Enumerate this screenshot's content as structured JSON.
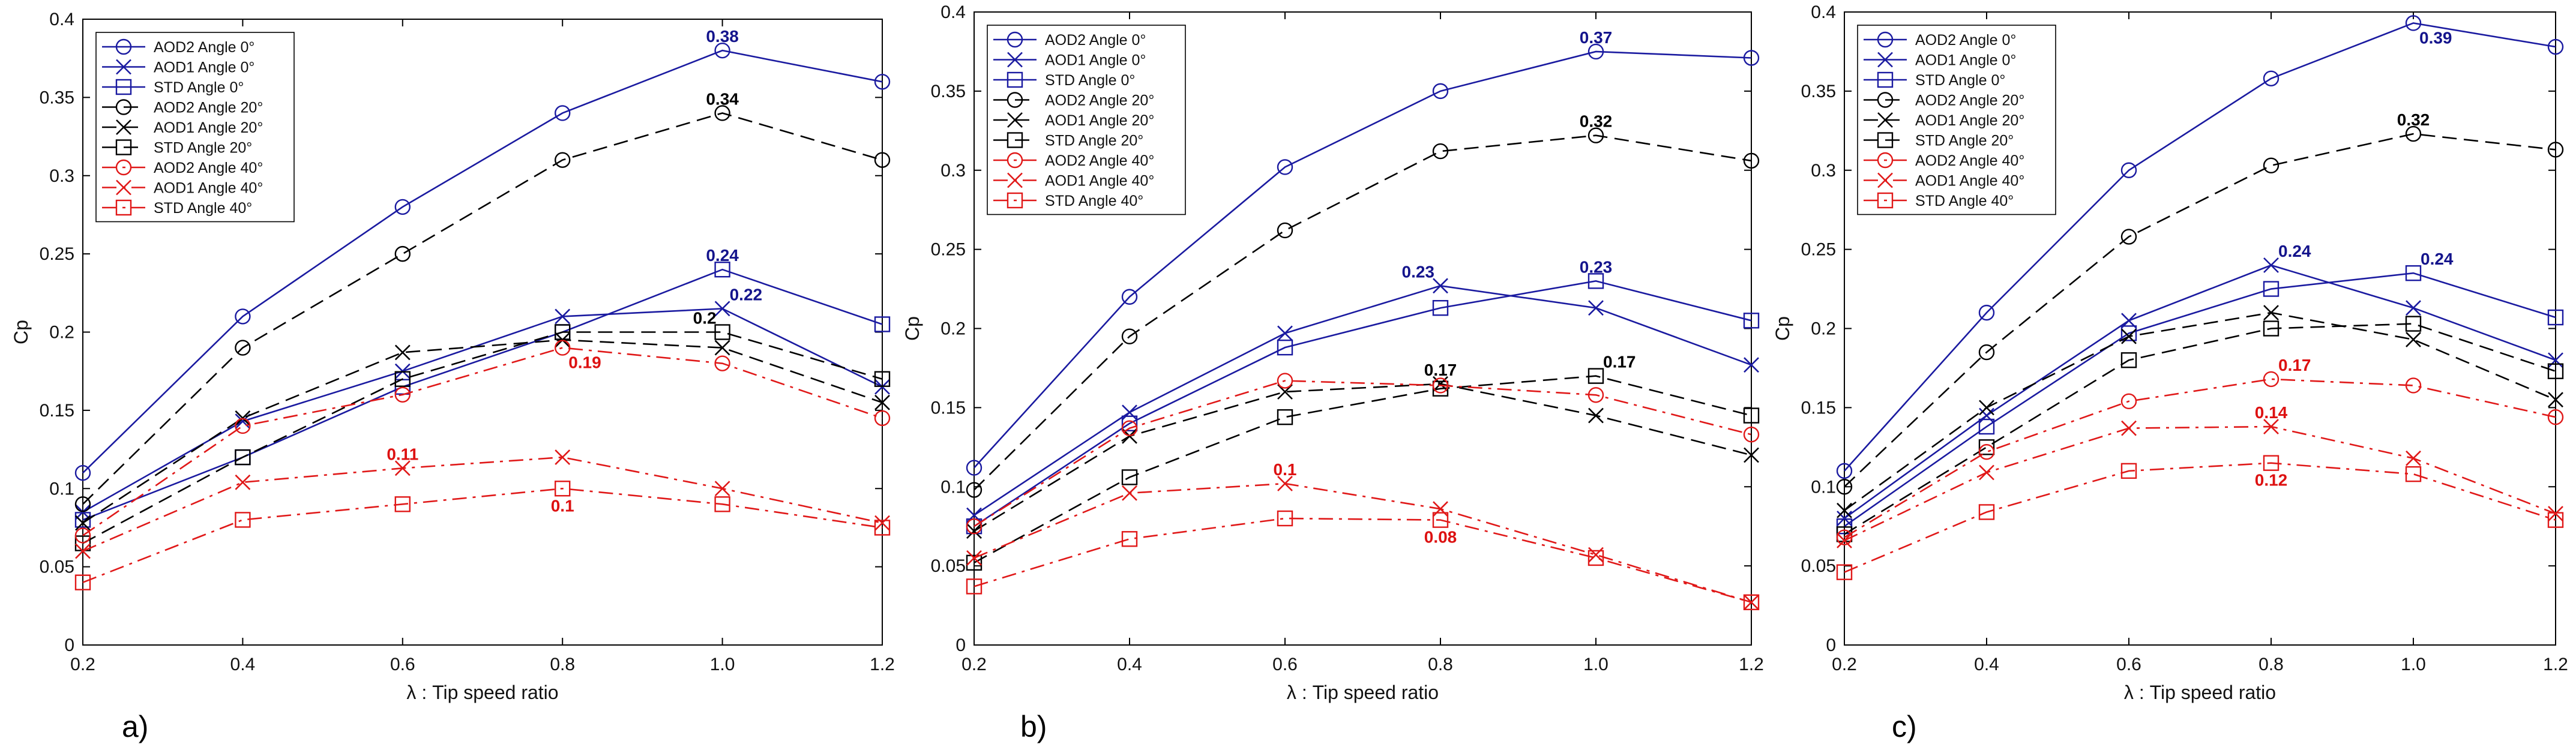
{
  "colors": {
    "blue": "#1a1aa0",
    "black": "#000000",
    "red": "#e01818",
    "label_blue": "#14148c",
    "label_red": "#dd1111"
  },
  "chart_data": [
    {
      "type": "line",
      "panel_label": "a)",
      "title": "",
      "xlabel": "λ : Tip speed ratio",
      "ylabel": "Cp",
      "xlim": [
        0.2,
        1.2
      ],
      "ylim": [
        0,
        0.4
      ],
      "grid": false,
      "legend_position": "top-left",
      "x_tick_labels": [
        "0.2",
        "0.4",
        "0.6",
        "0.8",
        "1.0",
        "1.2"
      ],
      "y_tick_labels": [
        "0",
        "0.05",
        "0.1",
        "0.15",
        "0.2",
        "0.25",
        "0.3",
        "0.35",
        "0.4"
      ],
      "x": [
        0.2,
        0.4,
        0.6,
        0.8,
        1.0,
        1.2
      ],
      "series": [
        {
          "name": "AOD2 Angle 0°",
          "color": "blue",
          "dash": "solid",
          "marker": "circle",
          "values": [
            0.11,
            0.21,
            0.28,
            0.34,
            0.38,
            0.36
          ]
        },
        {
          "name": "AOD1 Angle 0°",
          "color": "blue",
          "dash": "solid",
          "marker": "x",
          "values": [
            0.085,
            0.143,
            0.175,
            0.21,
            0.215,
            0.165
          ]
        },
        {
          "name": "STD Angle 0°",
          "color": "blue",
          "dash": "solid",
          "marker": "square",
          "values": [
            0.08,
            0.12,
            0.165,
            0.2,
            0.24,
            0.205
          ]
        },
        {
          "name": "AOD2 Angle 20°",
          "color": "black",
          "dash": "dashed",
          "marker": "circle",
          "values": [
            0.09,
            0.19,
            0.25,
            0.31,
            0.34,
            0.31
          ]
        },
        {
          "name": "AOD1 Angle 20°",
          "color": "black",
          "dash": "dashed",
          "marker": "x",
          "values": [
            0.078,
            0.145,
            0.187,
            0.195,
            0.19,
            0.155
          ]
        },
        {
          "name": "STD Angle 20°",
          "color": "black",
          "dash": "dashed",
          "marker": "square",
          "values": [
            0.065,
            0.12,
            0.17,
            0.2,
            0.2,
            0.17
          ]
        },
        {
          "name": "AOD2 Angle 40°",
          "color": "red",
          "dash": "dashdot",
          "marker": "circle",
          "values": [
            0.07,
            0.14,
            0.16,
            0.19,
            0.18,
            0.145
          ]
        },
        {
          "name": "AOD1 Angle 40°",
          "color": "red",
          "dash": "dashdot",
          "marker": "x",
          "values": [
            0.06,
            0.104,
            0.113,
            0.12,
            0.1,
            0.078
          ]
        },
        {
          "name": "STD Angle 40°",
          "color": "red",
          "dash": "dashdot",
          "marker": "square",
          "values": [
            0.04,
            0.08,
            0.09,
            0.1,
            0.09,
            0.075
          ]
        }
      ],
      "annotations": [
        {
          "text": "0.38",
          "x": 1.0,
          "y": 0.38,
          "color": "label_blue",
          "anchor": "above"
        },
        {
          "text": "0.34",
          "x": 1.0,
          "y": 0.34,
          "color": "black",
          "anchor": "above"
        },
        {
          "text": "0.24",
          "x": 1.0,
          "y": 0.24,
          "color": "label_blue",
          "anchor": "above"
        },
        {
          "text": "0.22",
          "x": 1.0,
          "y": 0.215,
          "color": "label_blue",
          "anchor": "above-right"
        },
        {
          "text": "0.2",
          "x": 1.0,
          "y": 0.2,
          "color": "black",
          "anchor": "above-left"
        },
        {
          "text": "0.19",
          "x": 0.8,
          "y": 0.19,
          "color": "label_red",
          "anchor": "below-right"
        },
        {
          "text": "0.11",
          "x": 0.6,
          "y": 0.113,
          "color": "label_red",
          "anchor": "above"
        },
        {
          "text": "0.1",
          "x": 0.8,
          "y": 0.1,
          "color": "label_red",
          "anchor": "below"
        }
      ]
    },
    {
      "type": "line",
      "panel_label": "b)",
      "title": "",
      "xlabel": "λ : Tip speed ratio",
      "ylabel": "Cp",
      "xlim": [
        0.2,
        1.2
      ],
      "ylim": [
        0,
        0.4
      ],
      "grid": false,
      "legend_position": "top-left",
      "x_tick_labels": [
        "0.2",
        "0.4",
        "0.6",
        "0.8",
        "1.0",
        "1.2"
      ],
      "y_tick_labels": [
        "0",
        "0.05",
        "0.1",
        "0.15",
        "0.2",
        "0.25",
        "0.3",
        "0.35",
        "0.4"
      ],
      "x": [
        0.2,
        0.4,
        0.6,
        0.8,
        1.0,
        1.2
      ],
      "series": [
        {
          "name": "AOD2 Angle 0°",
          "color": "blue",
          "dash": "solid",
          "marker": "circle",
          "values": [
            0.112,
            0.22,
            0.302,
            0.35,
            0.375,
            0.371
          ]
        },
        {
          "name": "AOD1 Angle 0°",
          "color": "blue",
          "dash": "solid",
          "marker": "x",
          "values": [
            0.082,
            0.147,
            0.197,
            0.227,
            0.213,
            0.177
          ]
        },
        {
          "name": "STD Angle 0°",
          "color": "blue",
          "dash": "solid",
          "marker": "square",
          "values": [
            0.075,
            0.14,
            0.188,
            0.213,
            0.23,
            0.205
          ]
        },
        {
          "name": "AOD2 Angle 20°",
          "color": "black",
          "dash": "dashed",
          "marker": "circle",
          "values": [
            0.098,
            0.195,
            0.262,
            0.312,
            0.322,
            0.306
          ]
        },
        {
          "name": "AOD1 Angle 20°",
          "color": "black",
          "dash": "dashed",
          "marker": "x",
          "values": [
            0.072,
            0.132,
            0.16,
            0.165,
            0.145,
            0.12
          ]
        },
        {
          "name": "STD Angle 20°",
          "color": "black",
          "dash": "dashed",
          "marker": "square",
          "values": [
            0.052,
            0.106,
            0.144,
            0.162,
            0.17,
            0.145
          ]
        },
        {
          "name": "AOD2 Angle 40°",
          "color": "red",
          "dash": "dashdot",
          "marker": "circle",
          "values": [
            0.075,
            0.137,
            0.167,
            0.164,
            0.158,
            0.133
          ]
        },
        {
          "name": "AOD1 Angle 40°",
          "color": "red",
          "dash": "dashdot",
          "marker": "x",
          "values": [
            0.055,
            0.096,
            0.102,
            0.086,
            0.057,
            0.027
          ]
        },
        {
          "name": "STD Angle 40°",
          "color": "red",
          "dash": "dashdot",
          "marker": "square",
          "values": [
            0.037,
            0.067,
            0.08,
            0.079,
            0.055,
            0.027
          ]
        }
      ],
      "annotations": [
        {
          "text": "0.37",
          "x": 1.0,
          "y": 0.375,
          "color": "label_blue",
          "anchor": "above"
        },
        {
          "text": "0.32",
          "x": 1.0,
          "y": 0.322,
          "color": "black",
          "anchor": "above"
        },
        {
          "text": "0.23",
          "x": 0.8,
          "y": 0.227,
          "color": "label_blue",
          "anchor": "above-left"
        },
        {
          "text": "0.23",
          "x": 1.0,
          "y": 0.23,
          "color": "label_blue",
          "anchor": "above"
        },
        {
          "text": "0.17",
          "x": 0.8,
          "y": 0.165,
          "color": "black",
          "anchor": "above"
        },
        {
          "text": "0.17",
          "x": 1.0,
          "y": 0.17,
          "color": "black",
          "anchor": "above-right"
        },
        {
          "text": "0.1",
          "x": 0.6,
          "y": 0.102,
          "color": "label_red",
          "anchor": "above"
        },
        {
          "text": "0.08",
          "x": 0.8,
          "y": 0.079,
          "color": "label_red",
          "anchor": "below"
        }
      ]
    },
    {
      "type": "line",
      "panel_label": "c)",
      "title": "",
      "xlabel": "λ : Tip speed ratio",
      "ylabel": "Cp",
      "xlim": [
        0.2,
        1.2
      ],
      "ylim": [
        0,
        0.4
      ],
      "grid": false,
      "legend_position": "top-left",
      "x_tick_labels": [
        "0.2",
        "0.4",
        "0.6",
        "0.8",
        "1.0",
        "1.2"
      ],
      "y_tick_labels": [
        "0",
        "0.05",
        "0.1",
        "0.15",
        "0.2",
        "0.25",
        "0.3",
        "0.35",
        "0.4"
      ],
      "x": [
        0.2,
        0.4,
        0.6,
        0.8,
        1.0,
        1.2
      ],
      "series": [
        {
          "name": "AOD2 Angle 0°",
          "color": "blue",
          "dash": "solid",
          "marker": "circle",
          "values": [
            0.11,
            0.21,
            0.3,
            0.358,
            0.393,
            0.378
          ]
        },
        {
          "name": "AOD1 Angle 0°",
          "color": "blue",
          "dash": "solid",
          "marker": "x",
          "values": [
            0.08,
            0.145,
            0.205,
            0.24,
            0.213,
            0.18
          ]
        },
        {
          "name": "STD Angle 0°",
          "color": "blue",
          "dash": "solid",
          "marker": "square",
          "values": [
            0.075,
            0.138,
            0.197,
            0.225,
            0.235,
            0.207
          ]
        },
        {
          "name": "AOD2 Angle 20°",
          "color": "black",
          "dash": "dashed",
          "marker": "circle",
          "values": [
            0.1,
            0.185,
            0.258,
            0.303,
            0.323,
            0.313
          ]
        },
        {
          "name": "AOD1 Angle 20°",
          "color": "black",
          "dash": "dashed",
          "marker": "x",
          "values": [
            0.085,
            0.15,
            0.195,
            0.21,
            0.193,
            0.155
          ]
        },
        {
          "name": "STD Angle 20°",
          "color": "black",
          "dash": "dashed",
          "marker": "square",
          "values": [
            0.07,
            0.125,
            0.18,
            0.2,
            0.203,
            0.173
          ]
        },
        {
          "name": "AOD2 Angle 40°",
          "color": "red",
          "dash": "dashdot",
          "marker": "circle",
          "values": [
            0.068,
            0.122,
            0.154,
            0.168,
            0.164,
            0.144
          ]
        },
        {
          "name": "AOD1 Angle 40°",
          "color": "red",
          "dash": "dashdot",
          "marker": "x",
          "values": [
            0.066,
            0.109,
            0.137,
            0.138,
            0.118,
            0.083
          ]
        },
        {
          "name": "STD Angle 40°",
          "color": "red",
          "dash": "dashdot",
          "marker": "square",
          "values": [
            0.046,
            0.084,
            0.11,
            0.115,
            0.108,
            0.079
          ]
        }
      ],
      "annotations": [
        {
          "text": "0.39",
          "x": 1.0,
          "y": 0.393,
          "color": "label_blue",
          "anchor": "below-right"
        },
        {
          "text": "0.32",
          "x": 1.0,
          "y": 0.323,
          "color": "black",
          "anchor": "above"
        },
        {
          "text": "0.24",
          "x": 0.8,
          "y": 0.24,
          "color": "label_blue",
          "anchor": "above-right"
        },
        {
          "text": "0.24",
          "x": 1.0,
          "y": 0.235,
          "color": "label_blue",
          "anchor": "above-right"
        },
        {
          "text": "0.17",
          "x": 0.8,
          "y": 0.168,
          "color": "label_red",
          "anchor": "above-right"
        },
        {
          "text": "0.14",
          "x": 0.8,
          "y": 0.138,
          "color": "label_red",
          "anchor": "above"
        },
        {
          "text": "0.12",
          "x": 0.8,
          "y": 0.115,
          "color": "label_red",
          "anchor": "below"
        }
      ]
    }
  ]
}
